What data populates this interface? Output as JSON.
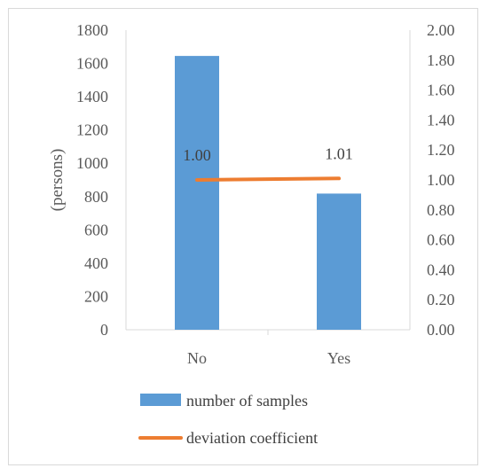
{
  "chart_data": {
    "type": "bar",
    "categories": [
      "No",
      "Yes"
    ],
    "series": [
      {
        "name": "number of samples",
        "type": "bar",
        "axis": "left",
        "values": [
          1645,
          818
        ],
        "color": "#5b9bd5"
      },
      {
        "name": "deviation coefficient",
        "type": "line",
        "axis": "right",
        "values": [
          1.0,
          1.01
        ],
        "labels": [
          "1.00",
          "1.01"
        ],
        "color": "#ed7d31"
      }
    ],
    "ylabel": "(persons)",
    "ylim": [
      0,
      1800
    ],
    "yticks": [
      "0",
      "200",
      "400",
      "600",
      "800",
      "1000",
      "1200",
      "1400",
      "1600",
      "1800"
    ],
    "y2lim": [
      0,
      2.0
    ],
    "y2ticks": [
      "0.00",
      "0.20",
      "0.40",
      "0.60",
      "0.80",
      "1.00",
      "1.20",
      "1.40",
      "1.60",
      "1.80",
      "2.00"
    ],
    "legend_position": "bottom",
    "grid": false
  }
}
